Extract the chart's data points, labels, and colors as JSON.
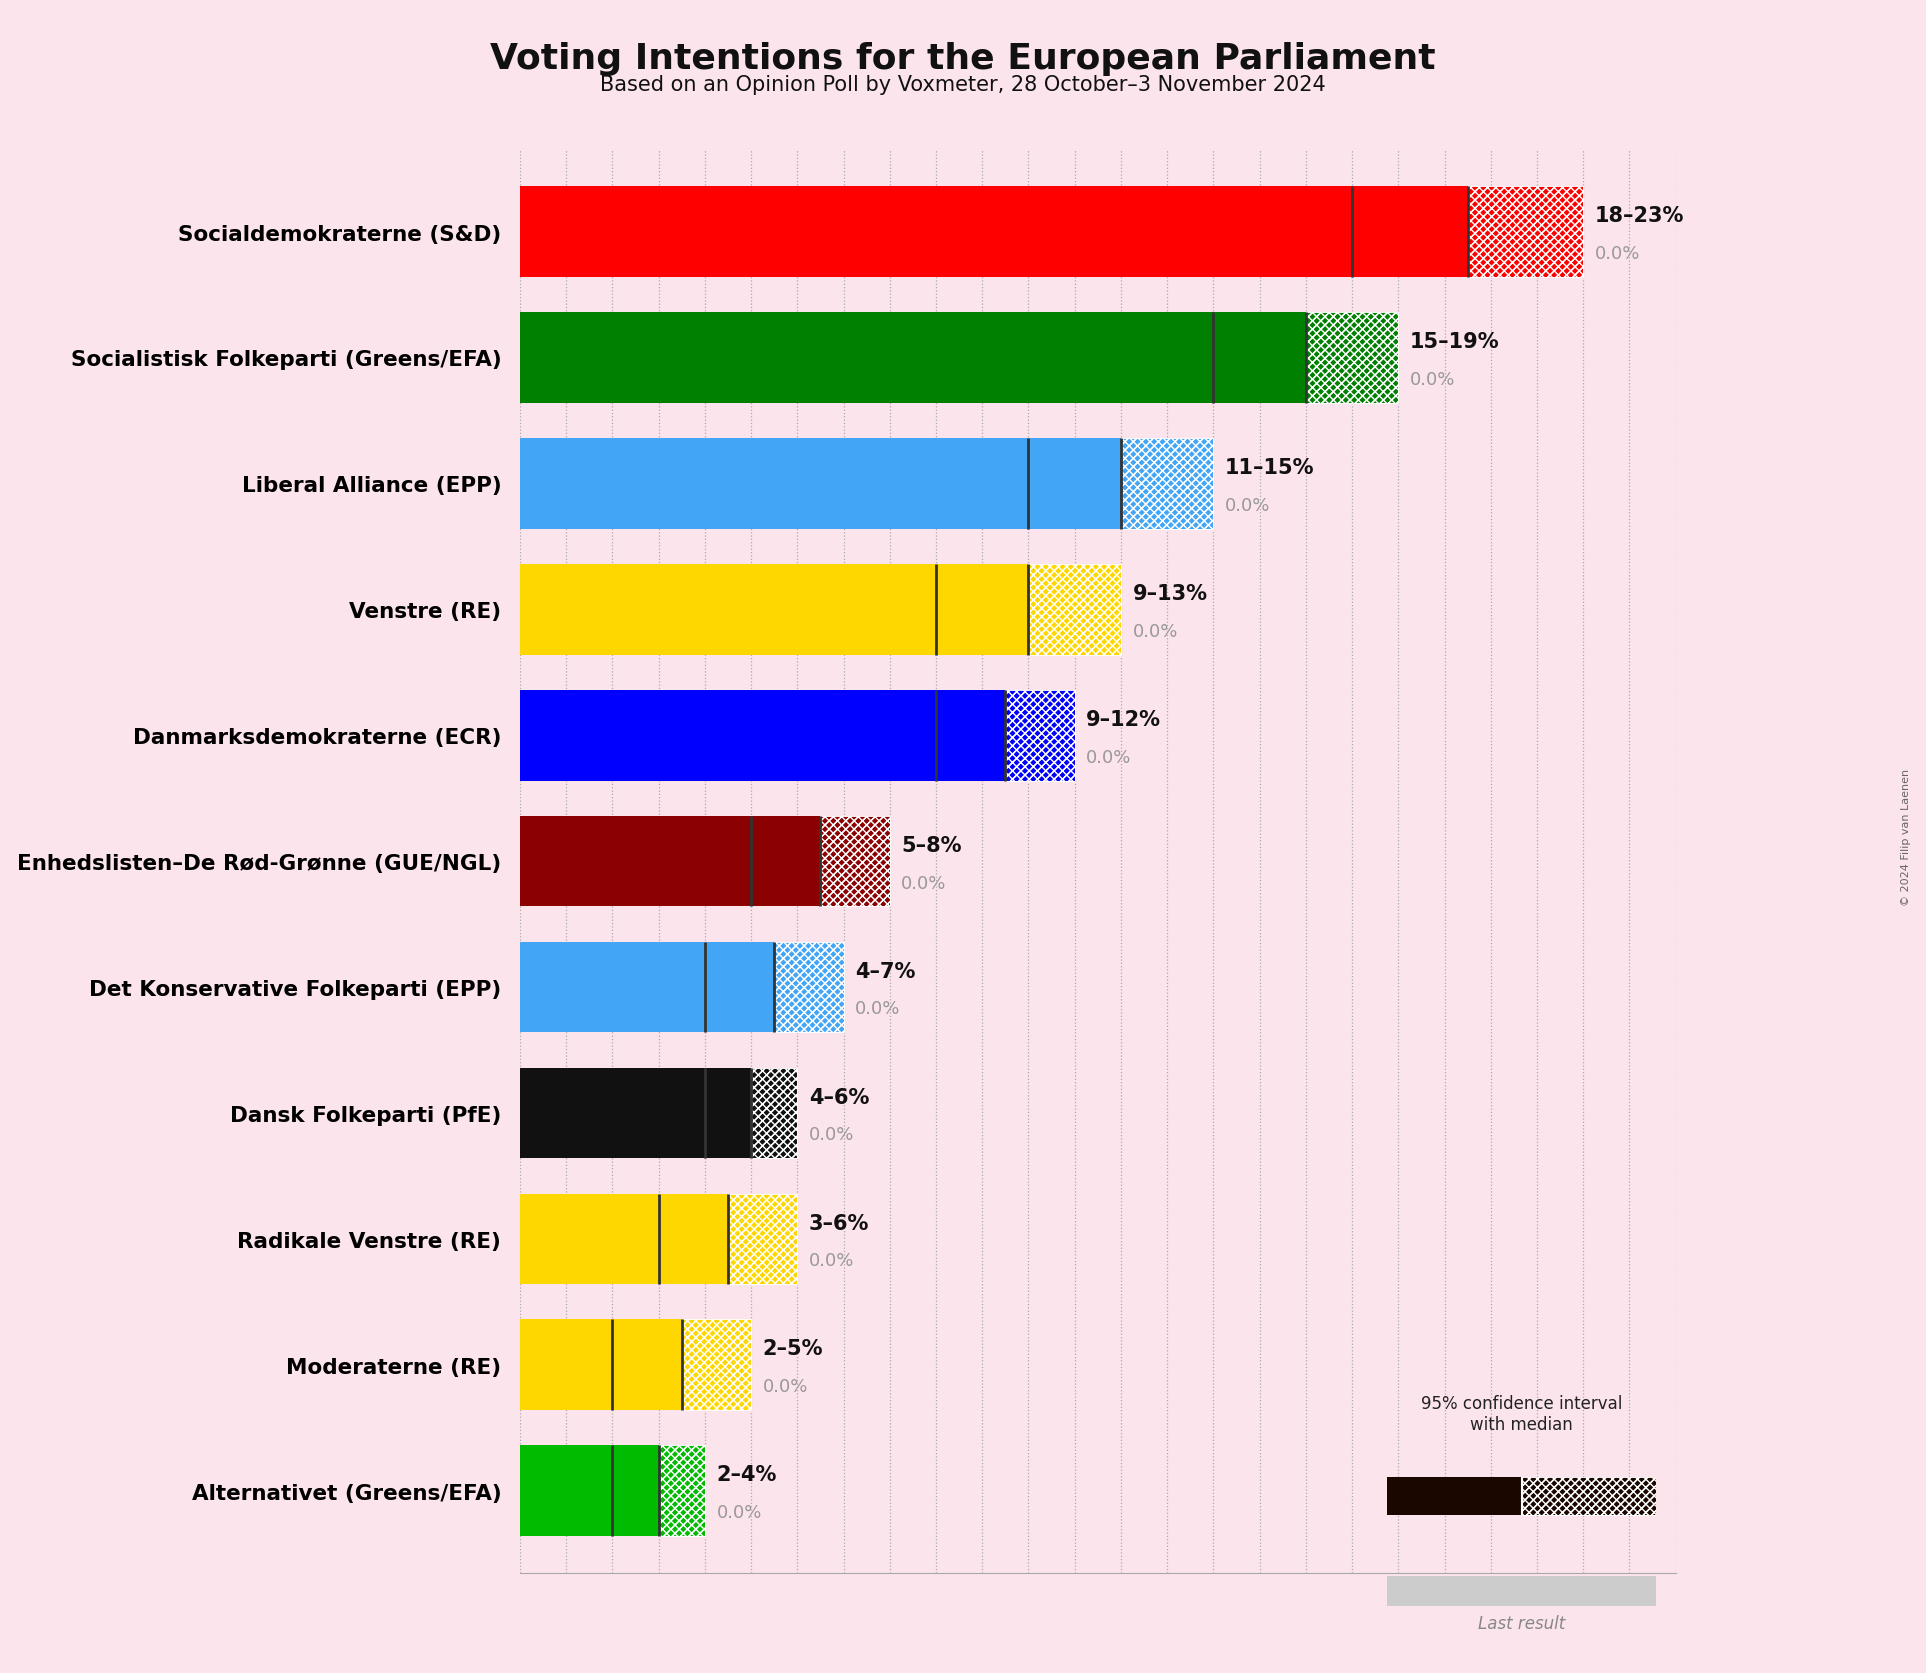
{
  "title": "Voting Intentions for the European Parliament",
  "subtitle": "Based on an Opinion Poll by Voxmeter, 28 October–3 November 2024",
  "copyright": "© 2024 Filip van Laenen",
  "background_color": "#fce4ec",
  "parties": [
    {
      "name": "Socialdemokraterne (S&D)",
      "ci_low": 18,
      "median": 20.5,
      "ci_high": 23,
      "last": 0.0,
      "color": "#ff0000",
      "label": "18–23%"
    },
    {
      "name": "Socialistisk Folkeparti (Greens/EFA)",
      "ci_low": 15,
      "median": 17,
      "ci_high": 19,
      "last": 0.0,
      "color": "#008000",
      "label": "15–19%"
    },
    {
      "name": "Liberal Alliance (EPP)",
      "ci_low": 11,
      "median": 13,
      "ci_high": 15,
      "last": 0.0,
      "color": "#42a5f5",
      "label": "11–15%"
    },
    {
      "name": "Venstre (RE)",
      "ci_low": 9,
      "median": 11,
      "ci_high": 13,
      "last": 0.0,
      "color": "#ffd700",
      "label": "9–13%"
    },
    {
      "name": "Danmarksdemokraterne (ECR)",
      "ci_low": 9,
      "median": 10.5,
      "ci_high": 12,
      "last": 0.0,
      "color": "#0000ff",
      "label": "9–12%"
    },
    {
      "name": "Enhedslisten–De Rød-Grønne (GUE/NGL)",
      "ci_low": 5,
      "median": 6.5,
      "ci_high": 8,
      "last": 0.0,
      "color": "#8b0000",
      "label": "5–8%"
    },
    {
      "name": "Det Konservative Folkeparti (EPP)",
      "ci_low": 4,
      "median": 5.5,
      "ci_high": 7,
      "last": 0.0,
      "color": "#42a5f5",
      "label": "4–7%"
    },
    {
      "name": "Dansk Folkeparti (PfE)",
      "ci_low": 4,
      "median": 5,
      "ci_high": 6,
      "last": 0.0,
      "color": "#111111",
      "label": "4–6%"
    },
    {
      "name": "Radikale Venstre (RE)",
      "ci_low": 3,
      "median": 4.5,
      "ci_high": 6,
      "last": 0.0,
      "color": "#ffd700",
      "label": "3–6%"
    },
    {
      "name": "Moderaterne (RE)",
      "ci_low": 2,
      "median": 3.5,
      "ci_high": 5,
      "last": 0.0,
      "color": "#ffd700",
      "label": "2–5%"
    },
    {
      "name": "Alternativet (Greens/EFA)",
      "ci_low": 2,
      "median": 3,
      "ci_high": 4,
      "last": 0.0,
      "color": "#00bb00",
      "label": "2–4%"
    }
  ],
  "xlim": [
    0,
    25
  ],
  "bar_height": 0.72,
  "gridline_color": "#aaaaaa",
  "label_color_range": "#111111",
  "label_color_last": "#999999",
  "legend_box_color": "#1a0800"
}
